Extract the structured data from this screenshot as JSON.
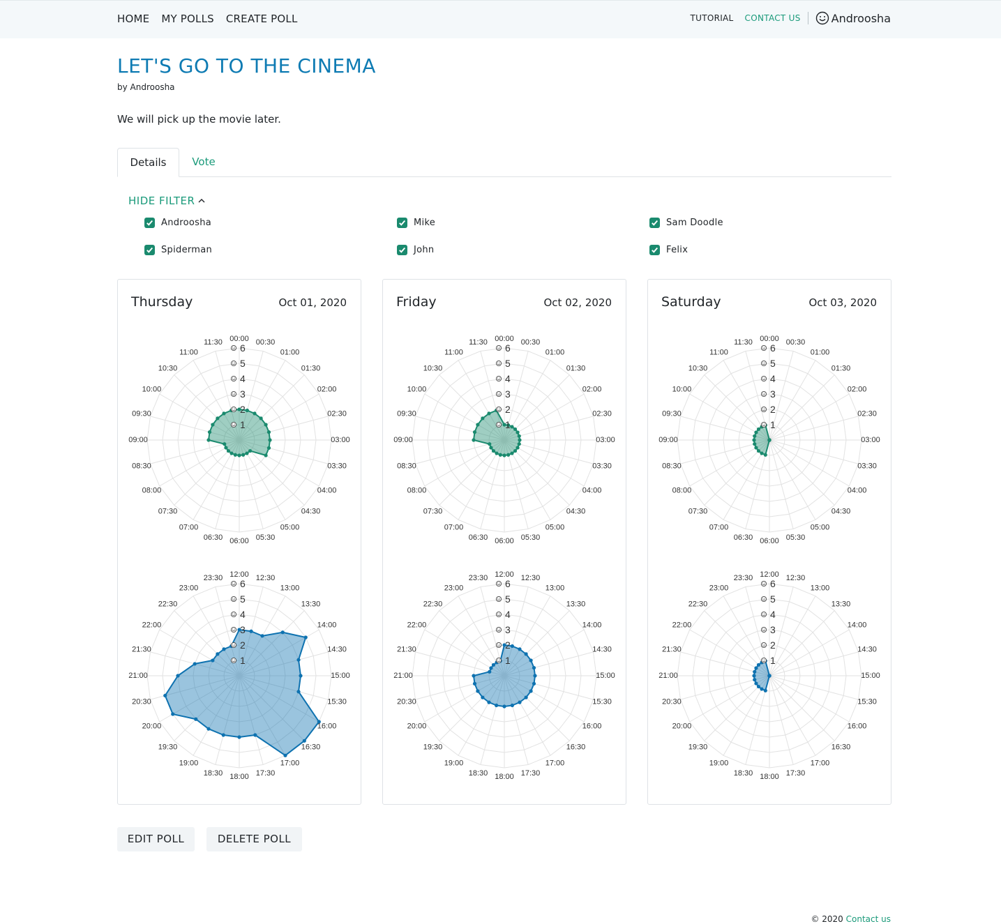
{
  "nav": {
    "home": "HOME",
    "my_polls": "MY POLLS",
    "create_poll": "CREATE POLL",
    "tutorial": "TUTORIAL",
    "contact_us": "CONTACT US",
    "user": "Androosha"
  },
  "poll": {
    "title": "LET'S GO TO THE CINEMA",
    "byline": "by Androosha",
    "description": "We will pick up the movie later."
  },
  "tabs": {
    "details": "Details",
    "vote": "Vote"
  },
  "filter": {
    "toggle_label": "HIDE FILTER",
    "participants": [
      "Androosha",
      "Mike",
      "Sam Doodle",
      "Spiderman",
      "John",
      "Felix"
    ]
  },
  "colors": {
    "morning": "#1a8a6e",
    "afternoon": "#0e72b0",
    "accent": "#1a9a7a",
    "title": "#0e7bb3"
  },
  "chart_data": [
    {
      "type": "radar",
      "day": "Thursday",
      "date": "Oct 01, 2020",
      "period": "00:00-11:30",
      "x": [
        "00:00",
        "00:30",
        "01:00",
        "01:30",
        "02:00",
        "02:30",
        "03:00",
        "03:30",
        "04:00",
        "04:30",
        "05:00",
        "05:30",
        "06:00",
        "06:30",
        "07:00",
        "07:30",
        "08:00",
        "08:30",
        "09:00",
        "09:30",
        "10:00",
        "10:30",
        "11:00",
        "11:30"
      ],
      "values": [
        2,
        2,
        2,
        2,
        2,
        2,
        2,
        2,
        2,
        1,
        1,
        1,
        1,
        1,
        1,
        1,
        1,
        1,
        2,
        2,
        2,
        2,
        2,
        2
      ],
      "ticks": [
        "1",
        "2",
        "3",
        "4",
        "5",
        "6"
      ],
      "ylim": [
        0,
        6
      ]
    },
    {
      "type": "radar",
      "day": "Thursday",
      "date": "Oct 01, 2020",
      "period": "12:00-23:30",
      "x": [
        "12:00",
        "12:30",
        "13:00",
        "13:30",
        "14:00",
        "14:30",
        "15:00",
        "15:30",
        "16:00",
        "16:30",
        "17:00",
        "17:30",
        "18:00",
        "18:30",
        "19:00",
        "19:30",
        "20:00",
        "20:30",
        "21:00",
        "21:30",
        "22:00",
        "22:30",
        "23:00",
        "23:30"
      ],
      "values": [
        3,
        3,
        3,
        4,
        5,
        4,
        4,
        4,
        6,
        6,
        6,
        4,
        4,
        4,
        4,
        4,
        5,
        5,
        4,
        3,
        2,
        2,
        2,
        2
      ],
      "ticks": [
        "1",
        "2",
        "3",
        "4",
        "5",
        "6"
      ],
      "ylim": [
        0,
        6
      ]
    },
    {
      "type": "radar",
      "day": "Friday",
      "date": "Oct 02, 2020",
      "period": "00:00-11:30",
      "x": [
        "00:00",
        "00:30",
        "01:00",
        "01:30",
        "02:00",
        "02:30",
        "03:00",
        "03:30",
        "04:00",
        "04:30",
        "05:00",
        "05:30",
        "06:00",
        "06:30",
        "07:00",
        "07:30",
        "08:00",
        "08:30",
        "09:00",
        "09:30",
        "10:00",
        "10:30",
        "11:00",
        "11:30"
      ],
      "values": [
        1,
        1,
        1,
        1,
        1,
        1,
        1,
        1,
        1,
        1,
        1,
        1,
        1,
        1,
        1,
        1,
        1,
        1,
        2,
        2,
        2,
        2,
        2,
        2
      ],
      "ticks": [
        "1",
        "2",
        "3",
        "4",
        "5",
        "6"
      ],
      "ylim": [
        0,
        6
      ]
    },
    {
      "type": "radar",
      "day": "Friday",
      "date": "Oct 02, 2020",
      "period": "12:00-23:30",
      "x": [
        "12:00",
        "12:30",
        "13:00",
        "13:30",
        "14:00",
        "14:30",
        "15:00",
        "15:30",
        "16:00",
        "16:30",
        "17:00",
        "17:30",
        "18:00",
        "18:30",
        "19:00",
        "19:30",
        "20:00",
        "20:30",
        "21:00",
        "21:30",
        "22:00",
        "22:30",
        "23:00",
        "23:30"
      ],
      "values": [
        2,
        2,
        2,
        2,
        2,
        2,
        2,
        2,
        2,
        2,
        2,
        2,
        2,
        2,
        2,
        2,
        2,
        2,
        2,
        1,
        1,
        1,
        1,
        1
      ],
      "ticks": [
        "1",
        "2",
        "3",
        "4",
        "5",
        "6"
      ],
      "ylim": [
        0,
        6
      ]
    },
    {
      "type": "radar",
      "day": "Saturday",
      "date": "Oct 03, 2020",
      "period": "00:00-11:30",
      "x": [
        "00:00",
        "00:30",
        "01:00",
        "01:30",
        "02:00",
        "02:30",
        "03:00",
        "03:30",
        "04:00",
        "04:30",
        "05:00",
        "05:30",
        "06:00",
        "06:30",
        "07:00",
        "07:30",
        "08:00",
        "08:30",
        "09:00",
        "09:30",
        "10:00",
        "10:30",
        "11:00",
        "11:30"
      ],
      "values": [
        0,
        0,
        0,
        0,
        0,
        0,
        0,
        0,
        0,
        0,
        0,
        0,
        0,
        1,
        1,
        1,
        1,
        1,
        1,
        1,
        1,
        1,
        1,
        1
      ],
      "ticks": [
        "1",
        "2",
        "3",
        "4",
        "5",
        "6"
      ],
      "ylim": [
        0,
        6
      ]
    },
    {
      "type": "radar",
      "day": "Saturday",
      "date": "Oct 03, 2020",
      "period": "12:00-23:30",
      "x": [
        "12:00",
        "12:30",
        "13:00",
        "13:30",
        "14:00",
        "14:30",
        "15:00",
        "15:30",
        "16:00",
        "16:30",
        "17:00",
        "17:30",
        "18:00",
        "18:30",
        "19:00",
        "19:30",
        "20:00",
        "20:30",
        "21:00",
        "21:30",
        "22:00",
        "22:30",
        "23:00",
        "23:30"
      ],
      "values": [
        0,
        0,
        0,
        0,
        0,
        0,
        0,
        0,
        0,
        0,
        0,
        0,
        0,
        1,
        1,
        1,
        1,
        1,
        1,
        1,
        1,
        1,
        1,
        1
      ],
      "ticks": [
        "1",
        "2",
        "3",
        "4",
        "5",
        "6"
      ],
      "ylim": [
        0,
        6
      ]
    }
  ],
  "actions": {
    "edit": "EDIT POLL",
    "delete": "DELETE POLL"
  },
  "footer": {
    "copyright": "© 2020",
    "contact": "Contact us"
  }
}
